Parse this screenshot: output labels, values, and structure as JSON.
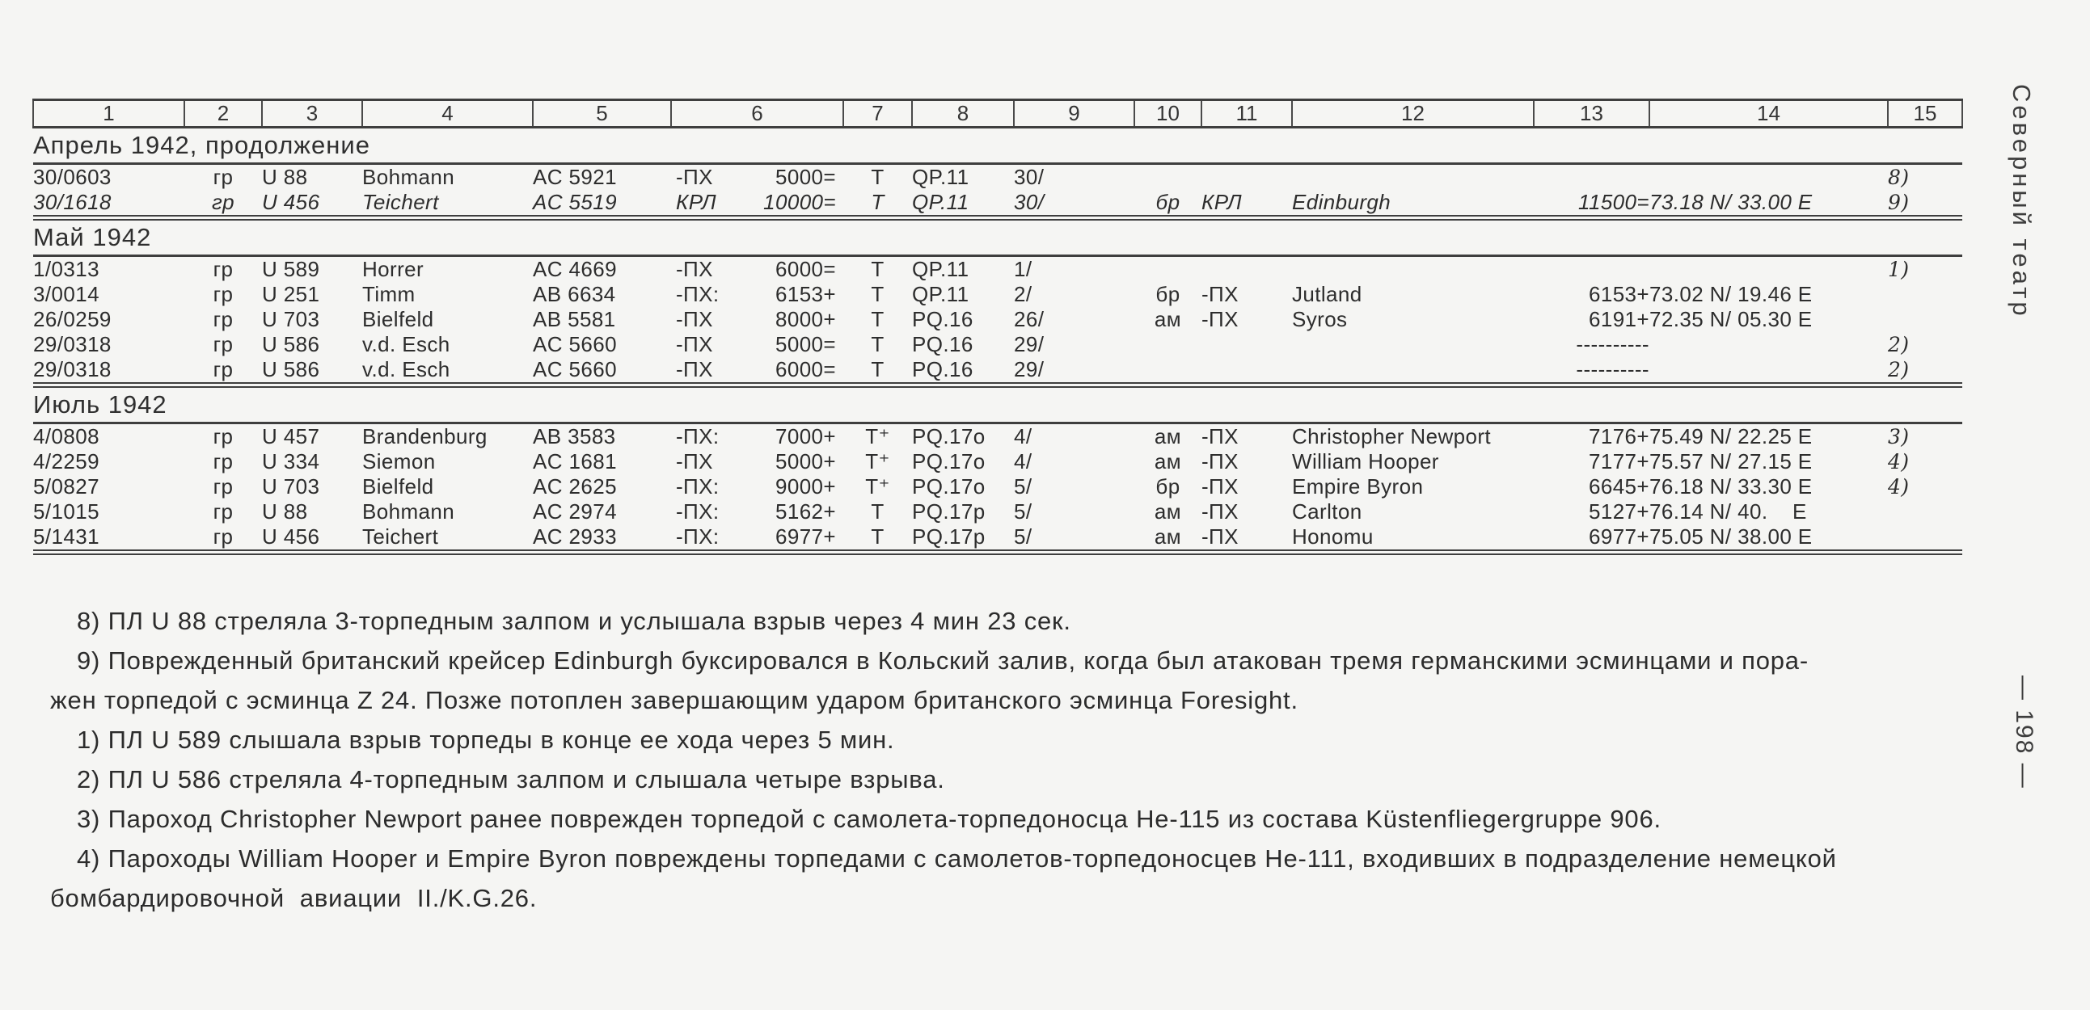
{
  "page": {
    "margin_title": "Северный театр",
    "page_number": "— 198 —"
  },
  "table": {
    "column_numbers": [
      "1",
      "2",
      "3",
      "4",
      "5",
      "6",
      "7",
      "8",
      "9",
      "10",
      "11",
      "12",
      "13",
      "14",
      "15"
    ],
    "sections": [
      {
        "title": "Апрель 1942, продолжение",
        "rows": [
          {
            "time": "30/0603",
            "flag": "гр",
            "boat": "U 88",
            "commander": "Bohmann",
            "square": "AC 5921",
            "attack_type": "-ПХ",
            "claim": "5000=",
            "weapon": "Т",
            "convoy": "QP.11",
            "date": "30/",
            "nat": "",
            "ship_type": "",
            "ship": "",
            "tonnage": "",
            "position": "",
            "note": "8)",
            "italic": false
          },
          {
            "time": "30/1618",
            "flag": "гр",
            "boat": "U 456",
            "commander": "Teichert",
            "square": "AC 5519",
            "attack_type": "КРЛ",
            "claim": "10000=",
            "weapon": "Т",
            "convoy": "QP.11",
            "date": "30/",
            "nat": "бр",
            "ship_type": "КРЛ",
            "ship": "Edinburgh",
            "tonnage": "11500=",
            "position": "73.18 N/ 33.00 E",
            "note": "9)",
            "italic": true
          }
        ]
      },
      {
        "title": "Май 1942",
        "rows": [
          {
            "time": "1/0313",
            "flag": "гр",
            "boat": "U 589",
            "commander": "Horrer",
            "square": "AC 4669",
            "attack_type": "-ПХ",
            "claim": "6000=",
            "weapon": "Т",
            "convoy": "QP.11",
            "date": "1/",
            "nat": "",
            "ship_type": "",
            "ship": "",
            "tonnage": "",
            "position": "",
            "note": "1)",
            "italic": false
          },
          {
            "time": "3/0014",
            "flag": "гр",
            "boat": "U 251",
            "commander": "Timm",
            "square": "AB 6634",
            "attack_type": "-ПХ:",
            "claim": "6153+",
            "weapon": "Т",
            "convoy": "QP.11",
            "date": "2/",
            "nat": "бр",
            "ship_type": "-ПХ",
            "ship": "Jutland",
            "tonnage": "6153+",
            "position": "73.02 N/ 19.46 E",
            "note": "",
            "italic": false
          },
          {
            "time": "26/0259",
            "flag": "гр",
            "boat": "U 703",
            "commander": "Bielfeld",
            "square": "AB 5581",
            "attack_type": "-ПХ",
            "claim": "8000+",
            "weapon": "Т",
            "convoy": "PQ.16",
            "date": "26/",
            "nat": "ам",
            "ship_type": "-ПХ",
            "ship": "Syros",
            "tonnage": "6191+",
            "position": "72.35 N/ 05.30 E",
            "note": "",
            "italic": false
          },
          {
            "time": "29/0318",
            "flag": "гр",
            "boat": "U 586",
            "commander": "v.d. Esch",
            "square": "AC 5660",
            "attack_type": "-ПХ",
            "claim": "5000=",
            "weapon": "Т",
            "convoy": "PQ.16",
            "date": "29/",
            "nat": "",
            "ship_type": "",
            "ship": "",
            "tonnage": "----------",
            "position": "",
            "note": "2)",
            "italic": false
          },
          {
            "time": "29/0318",
            "flag": "гр",
            "boat": "U 586",
            "commander": "v.d. Esch",
            "square": "AC 5660",
            "attack_type": "-ПХ",
            "claim": "6000=",
            "weapon": "Т",
            "convoy": "PQ.16",
            "date": "29/",
            "nat": "",
            "ship_type": "",
            "ship": "",
            "tonnage": "----------",
            "position": "",
            "note": "2)",
            "italic": false
          }
        ]
      },
      {
        "title": "Июль 1942",
        "rows": [
          {
            "time": "4/0808",
            "flag": "гр",
            "boat": "U 457",
            "commander": "Brandenburg",
            "square": "AB 3583",
            "attack_type": "-ПХ:",
            "claim": "7000+",
            "weapon": "Т⁺",
            "convoy": "PQ.17о",
            "date": "4/",
            "nat": "ам",
            "ship_type": "-ПХ",
            "ship": "Christopher Newport",
            "tonnage": "7176+",
            "position": "75.49 N/ 22.25 E",
            "note": "3)",
            "italic": false
          },
          {
            "time": "4/2259",
            "flag": "гр",
            "boat": "U 334",
            "commander": "Siemon",
            "square": "AC 1681",
            "attack_type": "-ПХ",
            "claim": "5000+",
            "weapon": "Т⁺",
            "convoy": "PQ.17о",
            "date": "4/",
            "nat": "ам",
            "ship_type": "-ПХ",
            "ship": "William Hooper",
            "tonnage": "7177+",
            "position": "75.57 N/ 27.15 E",
            "note": "4)",
            "italic": false
          },
          {
            "time": "5/0827",
            "flag": "гр",
            "boat": "U 703",
            "commander": "Bielfeld",
            "square": "AC 2625",
            "attack_type": "-ПХ:",
            "claim": "9000+",
            "weapon": "Т⁺",
            "convoy": "PQ.17о",
            "date": "5/",
            "nat": "бр",
            "ship_type": "-ПХ",
            "ship": "Empire Byron",
            "tonnage": "6645+",
            "position": "76.18 N/ 33.30 E",
            "note": "4)",
            "italic": false
          },
          {
            "time": "5/1015",
            "flag": "гр",
            "boat": "U 88",
            "commander": "Bohmann",
            "square": "AC 2974",
            "attack_type": "-ПХ:",
            "claim": "5162+",
            "weapon": "Т",
            "convoy": "PQ.17р",
            "date": "5/",
            "nat": "ам",
            "ship_type": "-ПХ",
            "ship": "Carlton",
            "tonnage": "5127+",
            "position": "76.14 N/ 40.    E",
            "note": "",
            "italic": false
          },
          {
            "time": "5/1431",
            "flag": "гр",
            "boat": "U 456",
            "commander": "Teichert",
            "square": "AC 2933",
            "attack_type": "-ПХ:",
            "claim": "6977+",
            "weapon": "Т",
            "convoy": "PQ.17р",
            "date": "5/",
            "nat": "ам",
            "ship_type": "-ПХ",
            "ship": "Honomu",
            "tonnage": "6977+",
            "position": "75.05 N/ 38.00 E",
            "note": "",
            "italic": false
          }
        ]
      }
    ]
  },
  "footnotes": [
    {
      "indent": true,
      "text": "8) ПЛ U 88 стреляла 3-торпедным залпом и услышала взрыв через 4 мин 23 сек."
    },
    {
      "indent": true,
      "text": "9) Поврежденный британский крейсер Edinburgh буксировался в Кольский залив, когда был атакован тремя германскими эсминцами и пора-"
    },
    {
      "indent": false,
      "text": "жен торпедой с эсминца Z 24. Позже потоплен завершающим ударом британского эсминца Foresight."
    },
    {
      "indent": true,
      "text": "1) ПЛ U 589 слышала взрыв торпеды в конце ее хода через 5 мин."
    },
    {
      "indent": true,
      "text": "2) ПЛ U 586 стреляла 4-торпедным залпом и слышала четыре взрыва."
    },
    {
      "indent": true,
      "text": "3) Пароход Christopher Newport ранее поврежден торпедой с самолета-торпедоносца He-115 из состава Küstenfliegergruppe 906."
    },
    {
      "indent": true,
      "text": "4) Пароходы William Hooper и Empire Byron повреждены торпедами с самолетов-торпедоносцев He-111, входивших в подразделение немецкой"
    },
    {
      "indent": false,
      "text": "бомбардировочной  авиации  II./K.G.26."
    }
  ]
}
